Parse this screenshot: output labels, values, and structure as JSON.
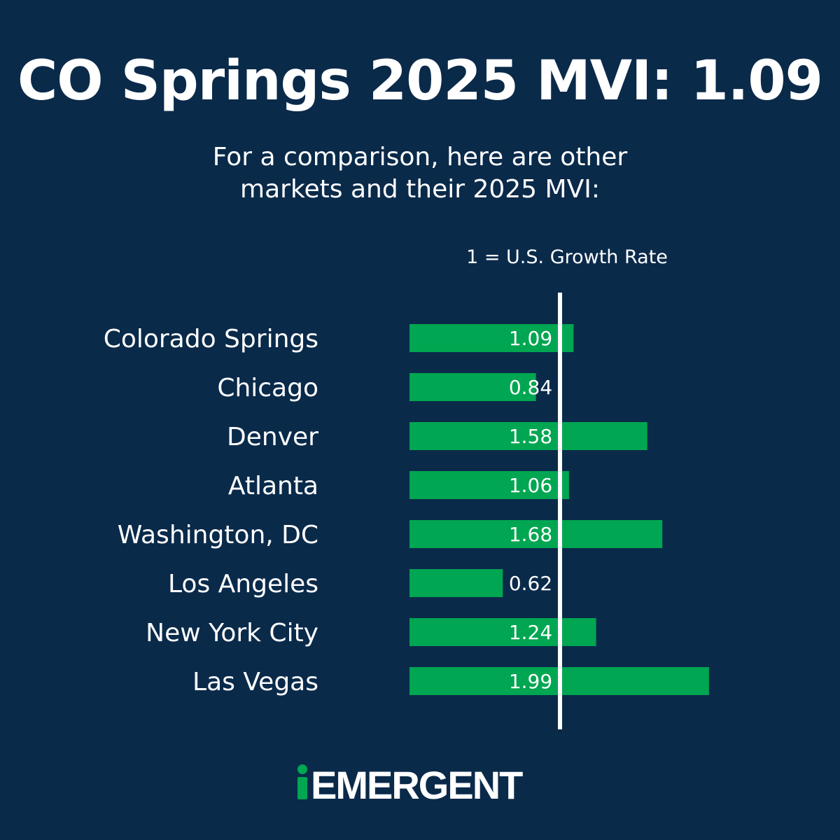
{
  "title": "CO Springs 2025 MVI: 1.09",
  "subtitle_line1": "For a comparison, here are other",
  "subtitle_line2": "markets and their 2025 MVI:",
  "reference_note": "1 = U.S. Growth Rate",
  "colors": {
    "background": "#0a2a4a",
    "bar": "#00a651",
    "text": "#ffffff",
    "reference_line": "#ffffff",
    "logo_green": "#00a651",
    "logo_white": "#ffffff"
  },
  "chart_data": {
    "type": "bar",
    "orientation": "horizontal",
    "title": "",
    "xlabel": "",
    "ylabel": "",
    "categories": [
      "Colorado Springs",
      "Chicago",
      "Denver",
      "Atlanta",
      "Washington, DC",
      "Los Angeles",
      "New York City",
      "Las Vegas"
    ],
    "values": [
      1.09,
      0.84,
      1.58,
      1.06,
      1.68,
      0.62,
      1.24,
      1.99
    ],
    "value_labels": [
      "1.09",
      "0.84",
      "1.58",
      "1.06",
      "1.68",
      "0.62",
      "1.24",
      "1.99"
    ],
    "reference_value": 1,
    "grid": false,
    "legend": "none"
  },
  "logo": {
    "text": "EMERGENT",
    "icon": "i-person-icon"
  }
}
